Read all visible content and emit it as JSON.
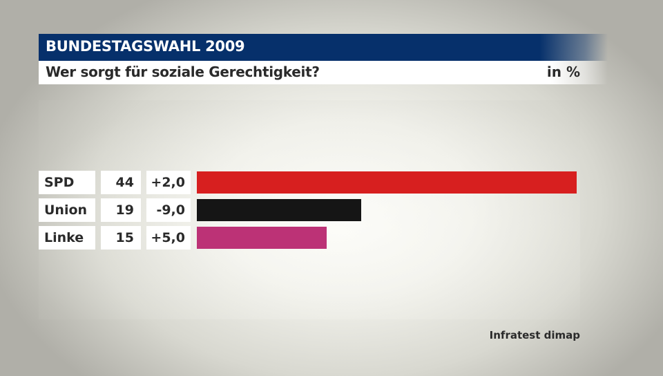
{
  "header": {
    "title": "BUNDESTAGSWAHL 2009",
    "subtitle": "Wer sorgt für soziale Gerechtigkeit?",
    "unit": "in %"
  },
  "colors": {
    "title_bar": "#06306b",
    "spd": "#d71f1f",
    "union": "#151515",
    "linke": "#bc3276"
  },
  "rows": [
    {
      "label": "SPD",
      "value": "44",
      "change": "+2,0",
      "color": "#d71f1f"
    },
    {
      "label": "Union",
      "value": "19",
      "change": "-9,0",
      "color": "#151515"
    },
    {
      "label": "Linke",
      "value": "15",
      "change": "+5,0",
      "color": "#bc3276"
    }
  ],
  "source": "Infratest dimap",
  "chart_data": {
    "type": "bar",
    "orientation": "horizontal",
    "title": "BUNDESTAGSWAHL 2009",
    "subtitle": "Wer sorgt für soziale Gerechtigkeit?",
    "unit": "in %",
    "categories": [
      "SPD",
      "Union",
      "Linke"
    ],
    "values": [
      44,
      19,
      15
    ],
    "changes": [
      2.0,
      -9.0,
      5.0
    ],
    "change_labels": [
      "+2,0",
      "-9,0",
      "+5,0"
    ],
    "colors": [
      "#d71f1f",
      "#151515",
      "#bc3276"
    ],
    "xlabel": "",
    "ylabel": "",
    "grid": false,
    "legend": "none",
    "source": "Infratest dimap"
  }
}
